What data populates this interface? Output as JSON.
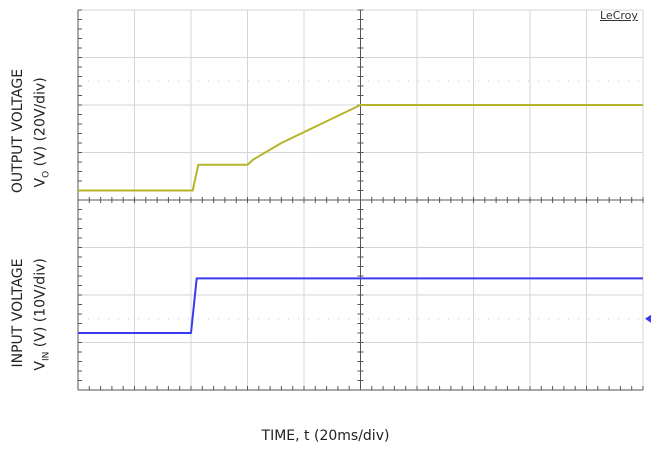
{
  "brand": "LeCroy",
  "x_axis_label": "TIME, t (20ms/div)",
  "top_label_line1": "OUTPUT VOLTAGE",
  "top_label_line2_prefix": "V",
  "top_label_line2_sub": "O",
  "top_label_line2_suffix": " (V) (20V/div)",
  "bottom_label_line1": "INPUT VOLTAGE",
  "bottom_label_line2_prefix": "V",
  "bottom_label_line2_sub": "IN",
  "bottom_label_line2_suffix": " (V) (10V/div)",
  "colors": {
    "output_trace": "#b5b52a",
    "input_trace": "#3a3af0",
    "grid": "#d6d6d6",
    "grid_dots": "#bbbbbb",
    "axis": "#555555"
  },
  "chart_data": {
    "type": "line",
    "x_unit": "div",
    "x_range": [
      0,
      10
    ],
    "y_unit": "div",
    "y_range": [
      0,
      8
    ],
    "grid": true,
    "series": [
      {
        "points": [
          [
            0,
            4.2
          ],
          [
            2.03,
            4.2
          ],
          [
            2.13,
            4.74
          ],
          [
            3.0,
            4.74
          ],
          [
            3.1,
            4.85
          ],
          [
            3.6,
            5.2
          ],
          [
            4.3,
            5.6
          ],
          [
            5.0,
            6.0
          ],
          [
            10,
            6.0
          ]
        ]
      },
      {
        "points": [
          [
            0,
            1.2
          ],
          [
            2.0,
            1.2
          ],
          [
            2.1,
            2.35
          ],
          [
            10,
            2.35
          ]
        ]
      }
    ]
  }
}
